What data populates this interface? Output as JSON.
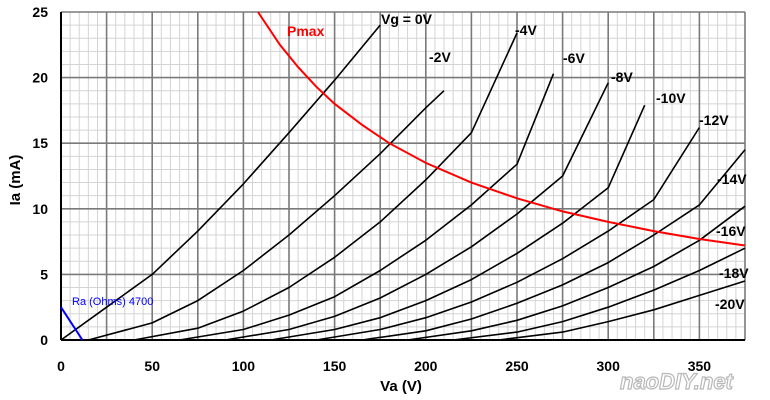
{
  "chart_data": {
    "type": "line",
    "xlabel": "Va (V)",
    "ylabel": "Ia (mA)",
    "xlim": [
      0,
      375
    ],
    "ylim": [
      0,
      25
    ],
    "x_ticks": [
      0,
      50,
      100,
      150,
      200,
      250,
      300,
      350
    ],
    "y_ticks": [
      0,
      5,
      10,
      15,
      20,
      25
    ],
    "x_tick_labels": [
      "0",
      "50",
      "100",
      "150",
      "200",
      "250",
      "300",
      "350"
    ],
    "y_tick_labels": [
      "0",
      "5",
      "10",
      "15",
      "20",
      "25"
    ],
    "grid": true,
    "series": [
      {
        "name": "Vg = 0V",
        "label": "Vg = 0V",
        "x": [
          0,
          25,
          50,
          75,
          100,
          125,
          150,
          175
        ],
        "y": [
          0,
          2.5,
          5.0,
          8.3,
          11.9,
          15.8,
          19.8,
          24.0
        ]
      },
      {
        "name": "-2V",
        "label": "-2V",
        "x": [
          15,
          50,
          75,
          100,
          125,
          150,
          175,
          200,
          210
        ],
        "y": [
          0,
          1.3,
          3.0,
          5.3,
          8.0,
          11.0,
          14.2,
          17.7,
          19.0
        ]
      },
      {
        "name": "-4V",
        "label": "-4V",
        "x": [
          40,
          75,
          100,
          125,
          150,
          175,
          200,
          225,
          250
        ],
        "y": [
          0,
          0.9,
          2.2,
          4.0,
          6.3,
          9.0,
          12.2,
          15.8,
          23.4
        ]
      },
      {
        "name": "-6V",
        "label": "-6V",
        "x": [
          65,
          100,
          125,
          150,
          175,
          200,
          225,
          250,
          270
        ],
        "y": [
          0,
          0.8,
          1.9,
          3.3,
          5.3,
          7.6,
          10.3,
          13.4,
          20.3
        ]
      },
      {
        "name": "-8V",
        "label": "-8V",
        "x": [
          90,
          125,
          150,
          175,
          200,
          225,
          250,
          275,
          300
        ],
        "y": [
          0,
          0.8,
          1.8,
          3.2,
          5.0,
          7.1,
          9.6,
          12.5,
          19.6
        ]
      },
      {
        "name": "-10V",
        "label": "-10V",
        "x": [
          115,
          150,
          175,
          200,
          225,
          250,
          275,
          300,
          320
        ],
        "y": [
          0,
          0.8,
          1.7,
          3.0,
          4.6,
          6.6,
          8.9,
          11.6,
          17.9
        ]
      },
      {
        "name": "-12V",
        "label": "-12V",
        "x": [
          140,
          175,
          200,
          225,
          250,
          275,
          300,
          325,
          350
        ],
        "y": [
          0,
          0.8,
          1.7,
          2.9,
          4.4,
          6.2,
          8.3,
          10.7,
          16.2
        ]
      },
      {
        "name": "-14V",
        "label": "-14V",
        "x": [
          165,
          200,
          225,
          250,
          275,
          300,
          325,
          350,
          375
        ],
        "y": [
          0,
          0.7,
          1.6,
          2.8,
          4.2,
          5.9,
          8.0,
          10.3,
          14.5
        ]
      },
      {
        "name": "-16V",
        "label": "-16V",
        "x": [
          190,
          225,
          250,
          275,
          300,
          325,
          350,
          375
        ],
        "y": [
          0,
          0.7,
          1.5,
          2.6,
          4.0,
          5.6,
          7.6,
          10.2
        ]
      },
      {
        "name": "-18V",
        "label": "-18V",
        "x": [
          215,
          250,
          275,
          300,
          325,
          350,
          375
        ],
        "y": [
          0,
          0.6,
          1.4,
          2.5,
          3.8,
          5.3,
          7.0
        ]
      },
      {
        "name": "-20V",
        "label": "-20V",
        "x": [
          240,
          275,
          300,
          325,
          350,
          375
        ],
        "y": [
          0,
          0.6,
          1.4,
          2.3,
          3.4,
          4.5
        ]
      }
    ],
    "pmax_curve": {
      "name": "Pmax",
      "label": "Pmax",
      "color": "#ff0000",
      "x": [
        108,
        120,
        130,
        140,
        150,
        165,
        180,
        200,
        225,
        250,
        275,
        300,
        325,
        350,
        375
      ],
      "y": [
        25.0,
        22.5,
        20.8,
        19.3,
        18.0,
        16.4,
        15.0,
        13.5,
        12.0,
        10.8,
        9.8,
        9.0,
        8.3,
        7.7,
        7.2
      ]
    },
    "load_line": {
      "label": "Ra (Ohms) 4700",
      "color": "#0000ff",
      "x": [
        0,
        11.75
      ],
      "y": [
        2.5,
        0
      ]
    }
  },
  "watermark": "naoDIY.net"
}
